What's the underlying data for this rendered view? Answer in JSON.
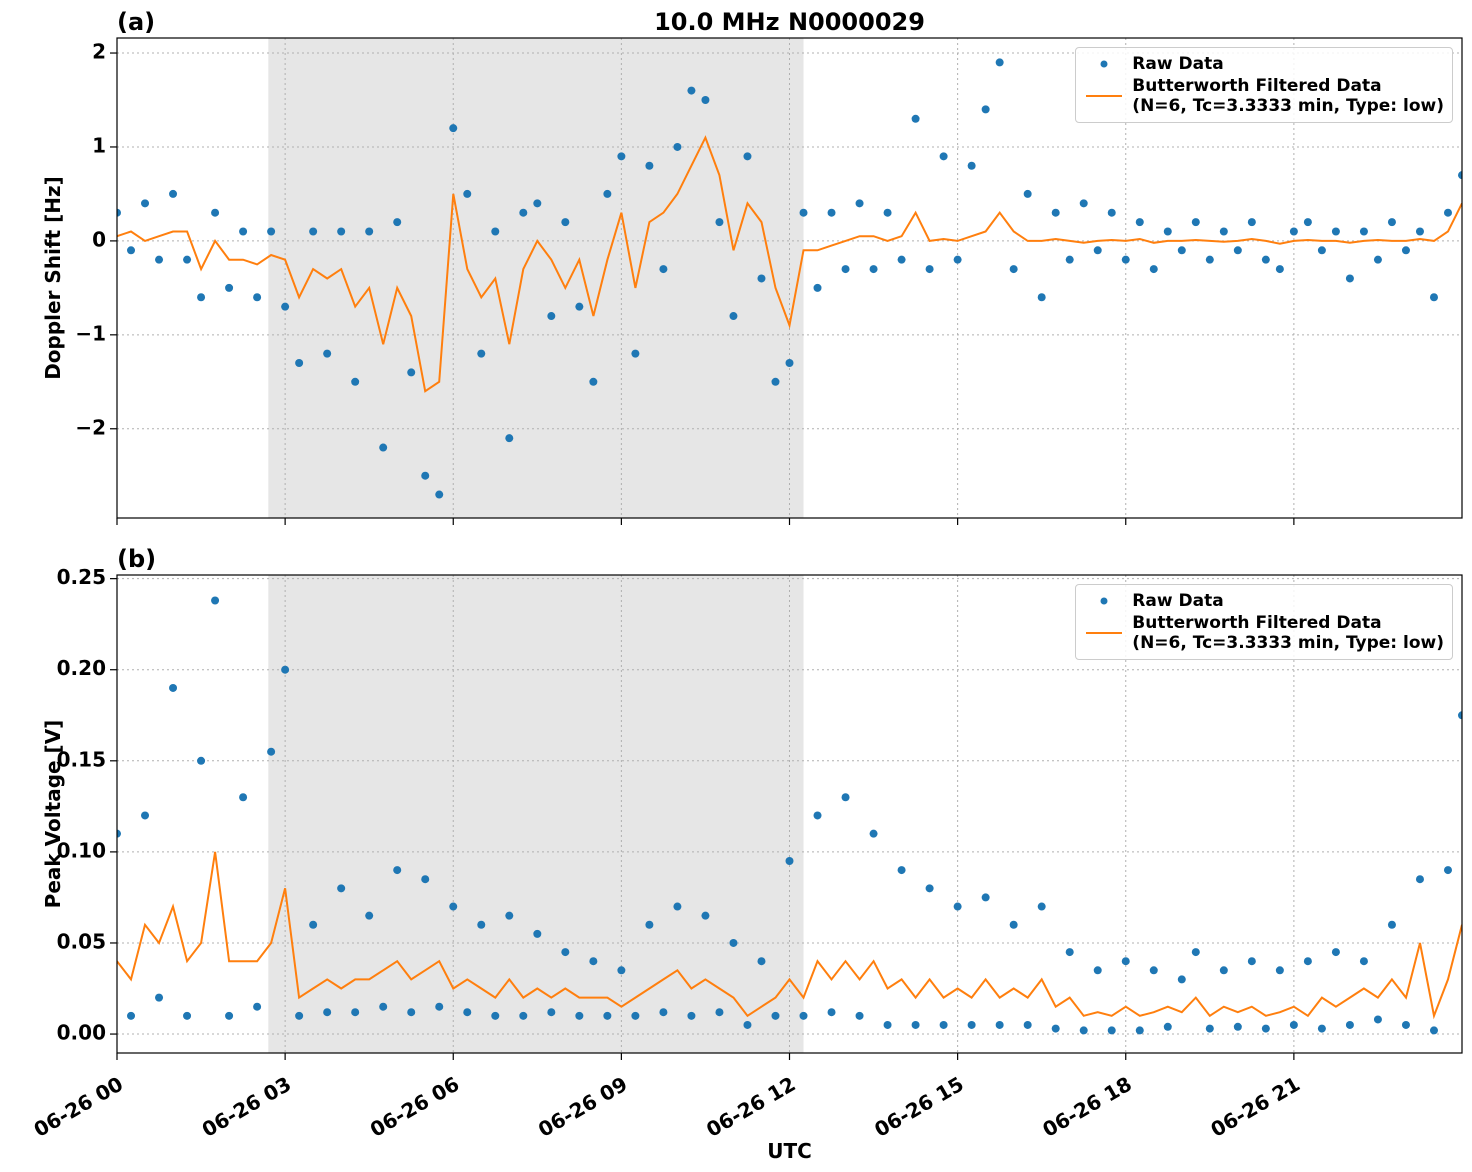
{
  "chart_data": [
    {
      "type": "combo",
      "title": "10.0 MHz N0000029",
      "panel_label": "(a)",
      "y_label": "Doppler Shift [Hz]",
      "xlim": [
        0,
        24
      ],
      "ylim": [
        -2.95,
        2.16
      ],
      "grid": true,
      "legend": "upper right",
      "shade": [
        2.7,
        12.25
      ],
      "shade_color": "#e6e6e6",
      "yticks": [
        {
          "value": -2,
          "label": "−2"
        },
        {
          "value": -1,
          "label": "−1"
        },
        0,
        1,
        2
      ],
      "x": [
        0,
        0.25,
        0.5,
        0.75,
        1,
        1.25,
        1.5,
        1.75,
        2,
        2.25,
        2.5,
        2.75,
        3,
        3.25,
        3.5,
        3.75,
        4,
        4.25,
        4.5,
        4.75,
        5,
        5.25,
        5.5,
        5.75,
        6,
        6.25,
        6.5,
        6.75,
        7,
        7.25,
        7.5,
        7.75,
        8,
        8.25,
        8.5,
        8.75,
        9,
        9.25,
        9.5,
        9.75,
        10,
        10.25,
        10.5,
        10.75,
        11,
        11.25,
        11.5,
        11.75,
        12,
        12.25,
        12.5,
        12.75,
        13,
        13.25,
        13.5,
        13.75,
        14,
        14.25,
        14.5,
        14.75,
        15,
        15.25,
        15.5,
        15.75,
        16,
        16.25,
        16.5,
        16.75,
        17,
        17.25,
        17.5,
        17.75,
        18,
        18.25,
        18.5,
        18.75,
        19,
        19.25,
        19.5,
        19.75,
        20,
        20.25,
        20.5,
        20.75,
        21,
        21.25,
        21.5,
        21.75,
        22,
        22.25,
        22.5,
        22.75,
        23,
        23.25,
        23.5,
        23.75,
        24
      ],
      "series": [
        {
          "name": "Raw Data",
          "kind": "scatter",
          "color": "#1f77b4",
          "values": [
            0.3,
            -0.1,
            0.4,
            -0.2,
            0.5,
            -0.2,
            -0.6,
            0.3,
            -0.5,
            0.1,
            -0.6,
            0.1,
            -0.7,
            -1.3,
            0.1,
            -1.2,
            0.1,
            -1.5,
            0.1,
            -2.2,
            0.2,
            -1.4,
            -2.5,
            -2.7,
            1.2,
            0.5,
            -1.2,
            0.1,
            -2.1,
            0.3,
            0.4,
            -0.8,
            0.2,
            -0.7,
            -1.5,
            0.5,
            0.9,
            -1.2,
            0.8,
            -0.3,
            1.0,
            1.6,
            1.5,
            0.2,
            -0.8,
            0.9,
            -0.4,
            -1.5,
            -1.3,
            0.3,
            -0.5,
            0.3,
            -0.3,
            0.4,
            -0.3,
            0.3,
            -0.2,
            1.3,
            -0.3,
            0.9,
            -0.2,
            0.8,
            1.4,
            1.9,
            -0.3,
            0.5,
            -0.6,
            0.3,
            -0.2,
            0.4,
            -0.1,
            0.3,
            -0.2,
            0.2,
            -0.3,
            0.1,
            -0.1,
            0.2,
            -0.2,
            0.1,
            -0.1,
            0.2,
            -0.2,
            -0.3,
            0.1,
            0.2,
            -0.1,
            0.1,
            -0.4,
            0.1,
            -0.2,
            0.2,
            -0.1,
            0.1,
            -0.6,
            0.3,
            0.7
          ]
        },
        {
          "name": "Butterworth Filtered Data\n(N=6, Tc=3.3333 min, Type: low)",
          "kind": "line",
          "color": "#ff7f0e",
          "values": [
            0.05,
            0.1,
            0,
            0.05,
            0.1,
            0.1,
            -0.3,
            0,
            -0.2,
            -0.2,
            -0.25,
            -0.15,
            -0.2,
            -0.6,
            -0.3,
            -0.4,
            -0.3,
            -0.7,
            -0.5,
            -1.1,
            -0.5,
            -0.8,
            -1.6,
            -1.5,
            0.5,
            -0.3,
            -0.6,
            -0.4,
            -1.1,
            -0.3,
            0,
            -0.2,
            -0.5,
            -0.2,
            -0.8,
            -0.2,
            0.3,
            -0.5,
            0.2,
            0.3,
            0.5,
            0.8,
            1.1,
            0.7,
            -0.1,
            0.4,
            0.2,
            -0.5,
            -0.9,
            -0.1,
            -0.1,
            -0.05,
            0,
            0.05,
            0.05,
            0,
            0.05,
            0.3,
            0,
            0.02,
            0,
            0.05,
            0.1,
            0.3,
            0.1,
            0,
            0,
            0.02,
            0,
            -0.02,
            0,
            0.01,
            0,
            0.02,
            -0.02,
            0,
            0,
            0.01,
            0,
            -0.01,
            0,
            0.02,
            0,
            -0.03,
            0,
            0.01,
            0,
            0,
            -0.02,
            0,
            0.01,
            0,
            0,
            0.02,
            0,
            0.1,
            0.4
          ]
        }
      ]
    },
    {
      "type": "combo",
      "panel_label": "(b)",
      "y_label": "Peak Voltage [V]",
      "x_label": "UTC",
      "xlim": [
        0,
        24
      ],
      "ylim": [
        -0.0104,
        0.252
      ],
      "grid": true,
      "legend": "upper right",
      "shade": [
        2.7,
        12.25
      ],
      "shade_color": "#e6e6e6",
      "xticks": [
        {
          "value": 0,
          "label": "06-26 00"
        },
        {
          "value": 3,
          "label": "06-26 03"
        },
        {
          "value": 6,
          "label": "06-26 06"
        },
        {
          "value": 9,
          "label": "06-26 09"
        },
        {
          "value": 12,
          "label": "06-26 12"
        },
        {
          "value": 15,
          "label": "06-26 15"
        },
        {
          "value": 18,
          "label": "06-26 18"
        },
        {
          "value": 21,
          "label": "06-26 21"
        }
      ],
      "yticks": [
        {
          "value": 0,
          "label": "0.00"
        },
        {
          "value": 0.05,
          "label": "0.05"
        },
        {
          "value": 0.1,
          "label": "0.10"
        },
        {
          "value": 0.15,
          "label": "0.15"
        },
        {
          "value": 0.2,
          "label": "0.20"
        },
        0.25
      ],
      "x": [
        0,
        0.25,
        0.5,
        0.75,
        1,
        1.25,
        1.5,
        1.75,
        2,
        2.25,
        2.5,
        2.75,
        3,
        3.25,
        3.5,
        3.75,
        4,
        4.25,
        4.5,
        4.75,
        5,
        5.25,
        5.5,
        5.75,
        6,
        6.25,
        6.5,
        6.75,
        7,
        7.25,
        7.5,
        7.75,
        8,
        8.25,
        8.5,
        8.75,
        9,
        9.25,
        9.5,
        9.75,
        10,
        10.25,
        10.5,
        10.75,
        11,
        11.25,
        11.5,
        11.75,
        12,
        12.25,
        12.5,
        12.75,
        13,
        13.25,
        13.5,
        13.75,
        14,
        14.25,
        14.5,
        14.75,
        15,
        15.25,
        15.5,
        15.75,
        16,
        16.25,
        16.5,
        16.75,
        17,
        17.25,
        17.5,
        17.75,
        18,
        18.25,
        18.5,
        18.75,
        19,
        19.25,
        19.5,
        19.75,
        20,
        20.25,
        20.5,
        20.75,
        21,
        21.25,
        21.5,
        21.75,
        22,
        22.25,
        22.5,
        22.75,
        23,
        23.25,
        23.5,
        23.75,
        24
      ],
      "series": [
        {
          "name": "Raw Data",
          "kind": "scatter",
          "color": "#1f77b4",
          "values": [
            0.11,
            0.01,
            0.12,
            0.02,
            0.19,
            0.01,
            0.15,
            0.238,
            0.01,
            0.13,
            0.015,
            0.155,
            0.2,
            0.01,
            0.06,
            0.012,
            0.08,
            0.012,
            0.065,
            0.015,
            0.09,
            0.012,
            0.085,
            0.015,
            0.07,
            0.012,
            0.06,
            0.01,
            0.065,
            0.01,
            0.055,
            0.012,
            0.045,
            0.01,
            0.04,
            0.01,
            0.035,
            0.01,
            0.06,
            0.012,
            0.07,
            0.01,
            0.065,
            0.012,
            0.05,
            0.005,
            0.04,
            0.01,
            0.095,
            0.01,
            0.12,
            0.012,
            0.13,
            0.01,
            0.11,
            0.005,
            0.09,
            0.005,
            0.08,
            0.005,
            0.07,
            0.005,
            0.075,
            0.005,
            0.06,
            0.005,
            0.07,
            0.003,
            0.045,
            0.002,
            0.035,
            0.002,
            0.04,
            0.002,
            0.035,
            0.004,
            0.03,
            0.045,
            0.003,
            0.035,
            0.004,
            0.04,
            0.003,
            0.035,
            0.005,
            0.04,
            0.003,
            0.045,
            0.005,
            0.04,
            0.008,
            0.06,
            0.005,
            0.085,
            0.002,
            0.09,
            0.175
          ]
        },
        {
          "name": "Butterworth Filtered Data\n(N=6, Tc=3.3333 min, Type: low)",
          "kind": "line",
          "color": "#ff7f0e",
          "values": [
            0.04,
            0.03,
            0.06,
            0.05,
            0.07,
            0.04,
            0.05,
            0.1,
            0.04,
            0.04,
            0.04,
            0.05,
            0.08,
            0.02,
            0.025,
            0.03,
            0.025,
            0.03,
            0.03,
            0.035,
            0.04,
            0.03,
            0.035,
            0.04,
            0.025,
            0.03,
            0.025,
            0.02,
            0.03,
            0.02,
            0.025,
            0.02,
            0.025,
            0.02,
            0.02,
            0.02,
            0.015,
            0.02,
            0.025,
            0.03,
            0.035,
            0.025,
            0.03,
            0.025,
            0.02,
            0.01,
            0.015,
            0.02,
            0.03,
            0.02,
            0.04,
            0.03,
            0.04,
            0.03,
            0.04,
            0.025,
            0.03,
            0.02,
            0.03,
            0.02,
            0.025,
            0.02,
            0.03,
            0.02,
            0.025,
            0.02,
            0.03,
            0.015,
            0.02,
            0.01,
            0.012,
            0.01,
            0.015,
            0.01,
            0.012,
            0.015,
            0.012,
            0.02,
            0.01,
            0.015,
            0.012,
            0.015,
            0.01,
            0.012,
            0.015,
            0.01,
            0.02,
            0.015,
            0.02,
            0.025,
            0.02,
            0.03,
            0.02,
            0.05,
            0.01,
            0.03,
            0.06
          ]
        }
      ]
    }
  ]
}
